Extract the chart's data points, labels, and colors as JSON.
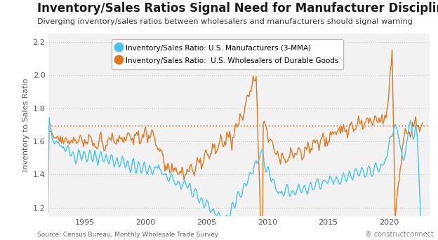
{
  "title": "Inventory/Sales Ratios Signal Need for Manufacturer Discipline",
  "subtitle": "Diverging inventory/sales ratios between wholesalers and manufacturers should signal warning",
  "ylabel": "Inventory to Sales Ratio",
  "source": "Source: Census Bureau, Monthly Wholesale Trade Survey",
  "watermark": "® constructconnect",
  "legend": [
    "Inventory/Sales Ratio: U.S. Manufacturers (3-MMA)",
    "Inventory/Sales Ratio:  U.S. Wholesalers of Durable Goods"
  ],
  "manufacturer_color": "#45C4F0",
  "wholesaler_color": "#E07820",
  "hline_color": "#E07820",
  "hline_y": 1.695,
  "ylim": [
    1.15,
    2.25
  ],
  "yticks": [
    1.2,
    1.4,
    1.6,
    1.8,
    2.0,
    2.2
  ],
  "xlim_start": 1992.0,
  "xlim_end": 2023.3,
  "xticks": [
    1995,
    2000,
    2005,
    2010,
    2015,
    2020
  ],
  "bg_color": "#FFFFFF",
  "plot_bg_color": "#F2F2F2",
  "grid_color": "#CCCCCC",
  "title_color": "#1A1A1A",
  "subtitle_color": "#333333",
  "source_color": "#666666",
  "tick_color": "#555555",
  "title_fontsize": 12,
  "subtitle_fontsize": 8,
  "axis_fontsize": 8,
  "legend_fontsize": 7.5
}
